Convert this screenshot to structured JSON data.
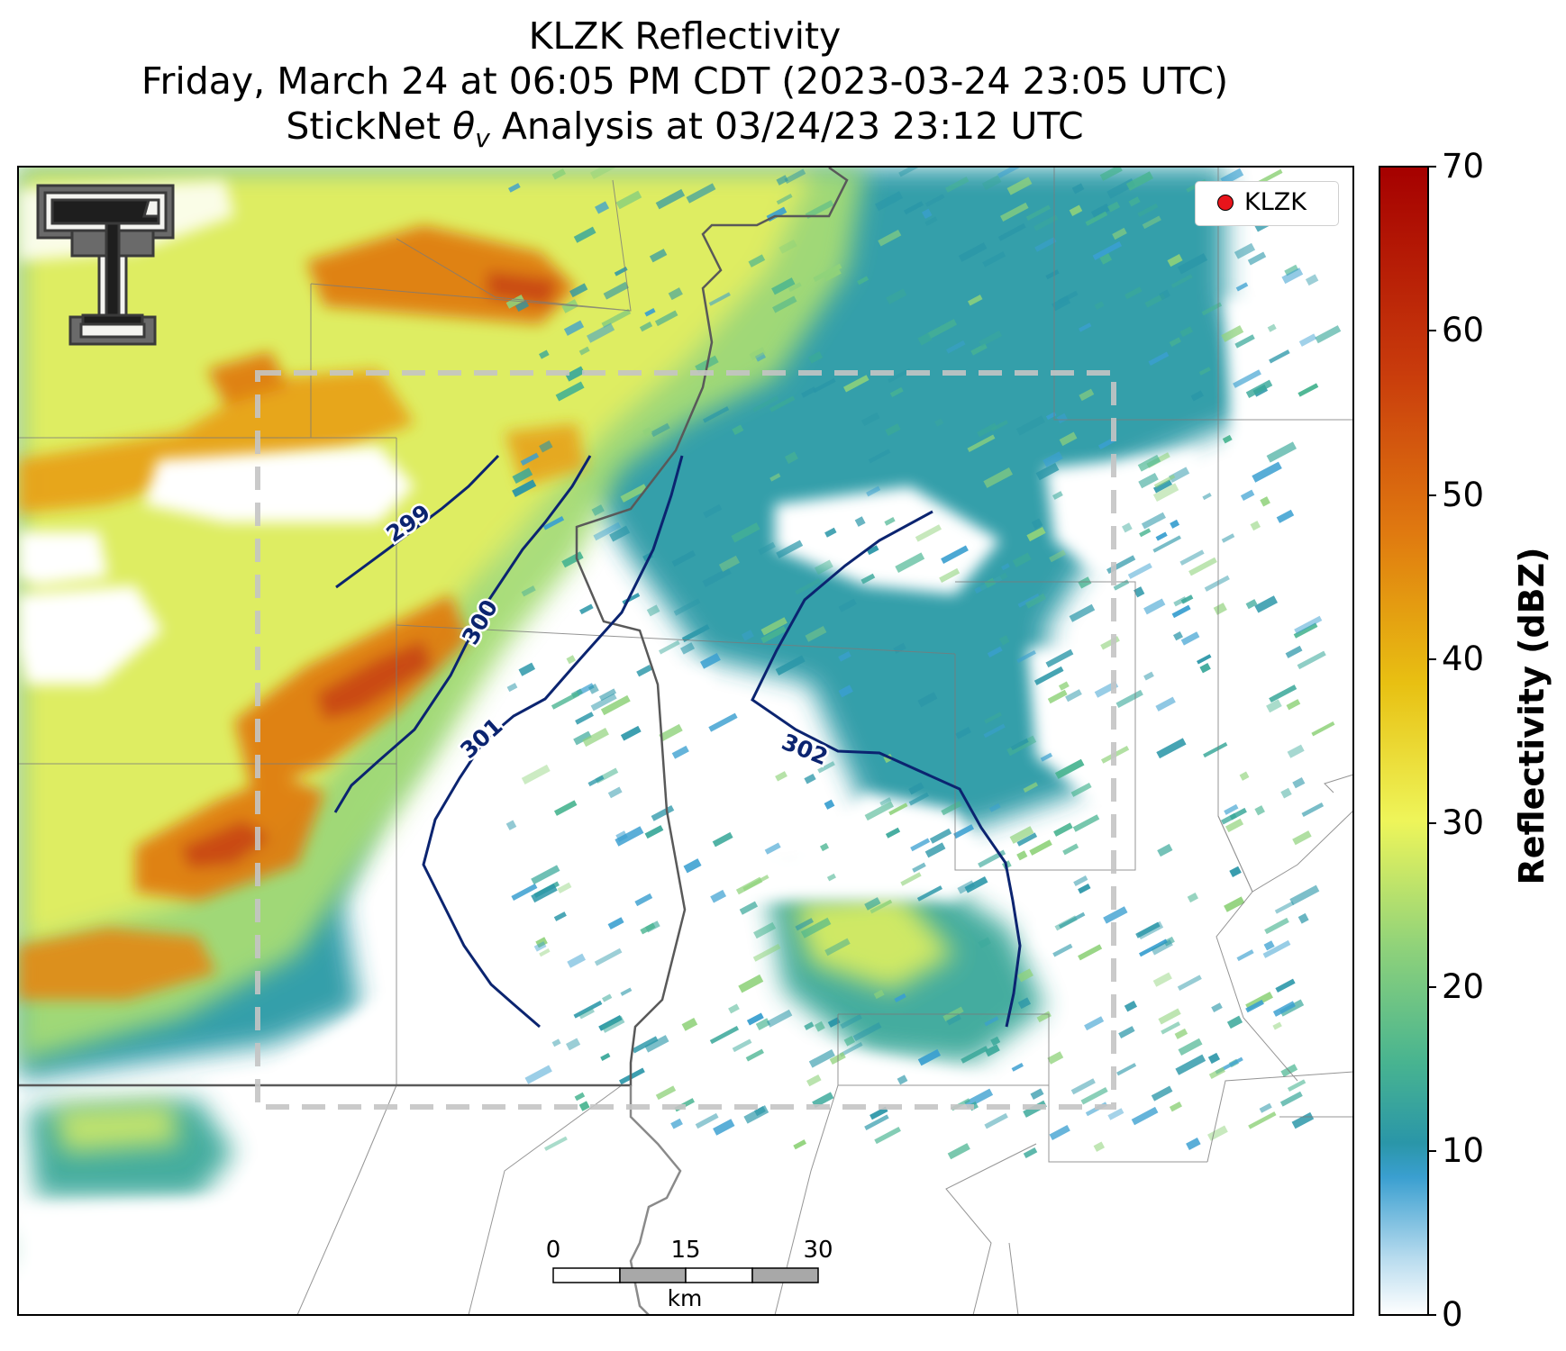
{
  "title": {
    "line1": "KLZK Reflectivity",
    "line2": "Friday, March 24 at 06:05 PM CDT (2023-03-24 23:05 UTC)",
    "line3_prefix": "StickNet ",
    "line3_symbol": "θ",
    "line3_subscript": "v",
    "line3_suffix": " Analysis at 03/24/23 23:12 UTC"
  },
  "colorbar": {
    "label": "Reflectivity (dBZ)",
    "ticks": [
      "0",
      "10",
      "20",
      "30",
      "40",
      "50",
      "60",
      "70"
    ],
    "colors": [
      "#ffffff",
      "#3a9fd0",
      "#2a96a8",
      "#48b490",
      "#8fd27a",
      "#eef55a",
      "#e8c012",
      "#e07a10",
      "#c93c0c",
      "#a50000"
    ]
  },
  "legend": {
    "label": "KLZK",
    "marker_color": "#e8141b"
  },
  "contours": [
    {
      "label": "299",
      "color": "#0b2470"
    },
    {
      "label": "300",
      "color": "#0b2470"
    },
    {
      "label": "301",
      "color": "#0b2470"
    },
    {
      "label": "302",
      "color": "#0b2470"
    }
  ],
  "scale_bar": {
    "labels": [
      "0",
      "15",
      "30"
    ],
    "unit": "km"
  },
  "logo": {
    "name": "Texas Tech Double T"
  }
}
